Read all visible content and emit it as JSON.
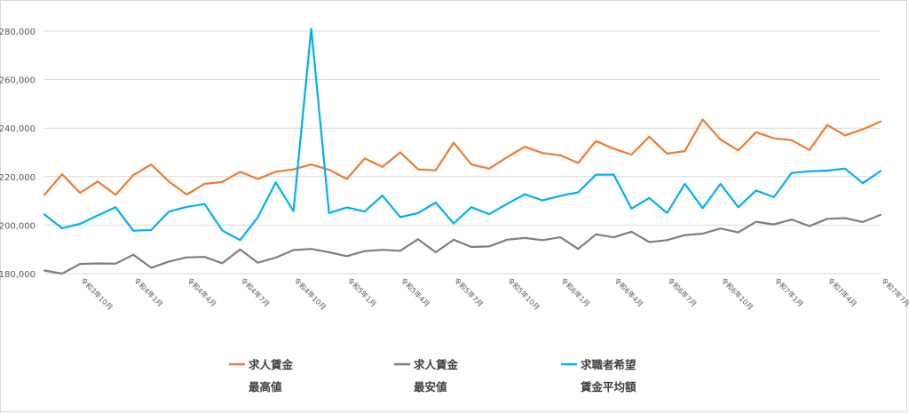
{
  "chart_data": {
    "type": "line",
    "title": "",
    "xlabel": "",
    "ylabel": "",
    "ylim": [
      180000,
      280000
    ],
    "yticks": [
      "180,000",
      "200,000",
      "220,000",
      "240,000",
      "260,000",
      "280,000"
    ],
    "ytick_values": [
      180000,
      200000,
      220000,
      240000,
      260000,
      280000
    ],
    "x_tick_labels": [
      "令和3年10月",
      "令和4年1月",
      "令和4年4月",
      "令和4年7月",
      "令和4年10月",
      "令和5年1月",
      "令和5年4月",
      "令和5年7月",
      "令和5年10月",
      "令和6年1月",
      "令和6年4月",
      "令和6年7月",
      "令和6年10月",
      "令和7年1月",
      "令和7年4月",
      "令和7年7月"
    ],
    "x_tick_indices": [
      2,
      5,
      8,
      11,
      14,
      17,
      20,
      23,
      26,
      29,
      32,
      35,
      38,
      41,
      44,
      47
    ],
    "n_points": 48,
    "grid": true,
    "legend_position": "bottom",
    "series": [
      {
        "name_lines": [
          "求人賃金",
          "最高値"
        ],
        "color": "#ED7D31",
        "values": [
          212500,
          221000,
          213300,
          218000,
          212500,
          220600,
          225000,
          218000,
          212600,
          217000,
          217800,
          222000,
          219000,
          222000,
          223000,
          225000,
          222800,
          219000,
          227500,
          224000,
          230000,
          223000,
          222600,
          234000,
          225000,
          223300,
          228000,
          232300,
          229700,
          228800,
          225600,
          234700,
          231500,
          229100,
          236500,
          229500,
          230500,
          243500,
          235300,
          230800,
          238300,
          235800,
          235000,
          231000,
          241300,
          237000,
          239500,
          242700
        ]
      },
      {
        "name_lines": [
          "求人賃金",
          "最安値"
        ],
        "color": "#7F7F7F",
        "values": [
          181300,
          180000,
          184000,
          184200,
          184100,
          187800,
          182400,
          185000,
          186700,
          186900,
          184300,
          190000,
          184500,
          186600,
          189700,
          190200,
          188800,
          187200,
          189300,
          189800,
          189400,
          194200,
          188800,
          194000,
          191000,
          191200,
          194000,
          194700,
          193800,
          195000,
          190200,
          196200,
          195000,
          197300,
          193000,
          193800,
          195900,
          196500,
          198600,
          197000,
          201400,
          200300,
          202300,
          199600,
          202600,
          202900,
          201300,
          204200
        ]
      },
      {
        "name_lines": [
          "求職者希望",
          "賃金平均額"
        ],
        "color": "#00B0F0",
        "values": [
          204400,
          198700,
          200500,
          204000,
          207400,
          197700,
          198000,
          205600,
          207500,
          208700,
          197800,
          193800,
          203300,
          217600,
          205800,
          281000,
          205000,
          207300,
          205600,
          212200,
          203300,
          205000,
          209300,
          200700,
          207400,
          204500,
          208700,
          212700,
          210200,
          212100,
          213500,
          220800,
          220800,
          206800,
          211200,
          205000,
          217000,
          207000,
          217000,
          207400,
          214300,
          211500,
          221500,
          222200,
          222500,
          223300,
          217300,
          222300
        ]
      }
    ]
  }
}
